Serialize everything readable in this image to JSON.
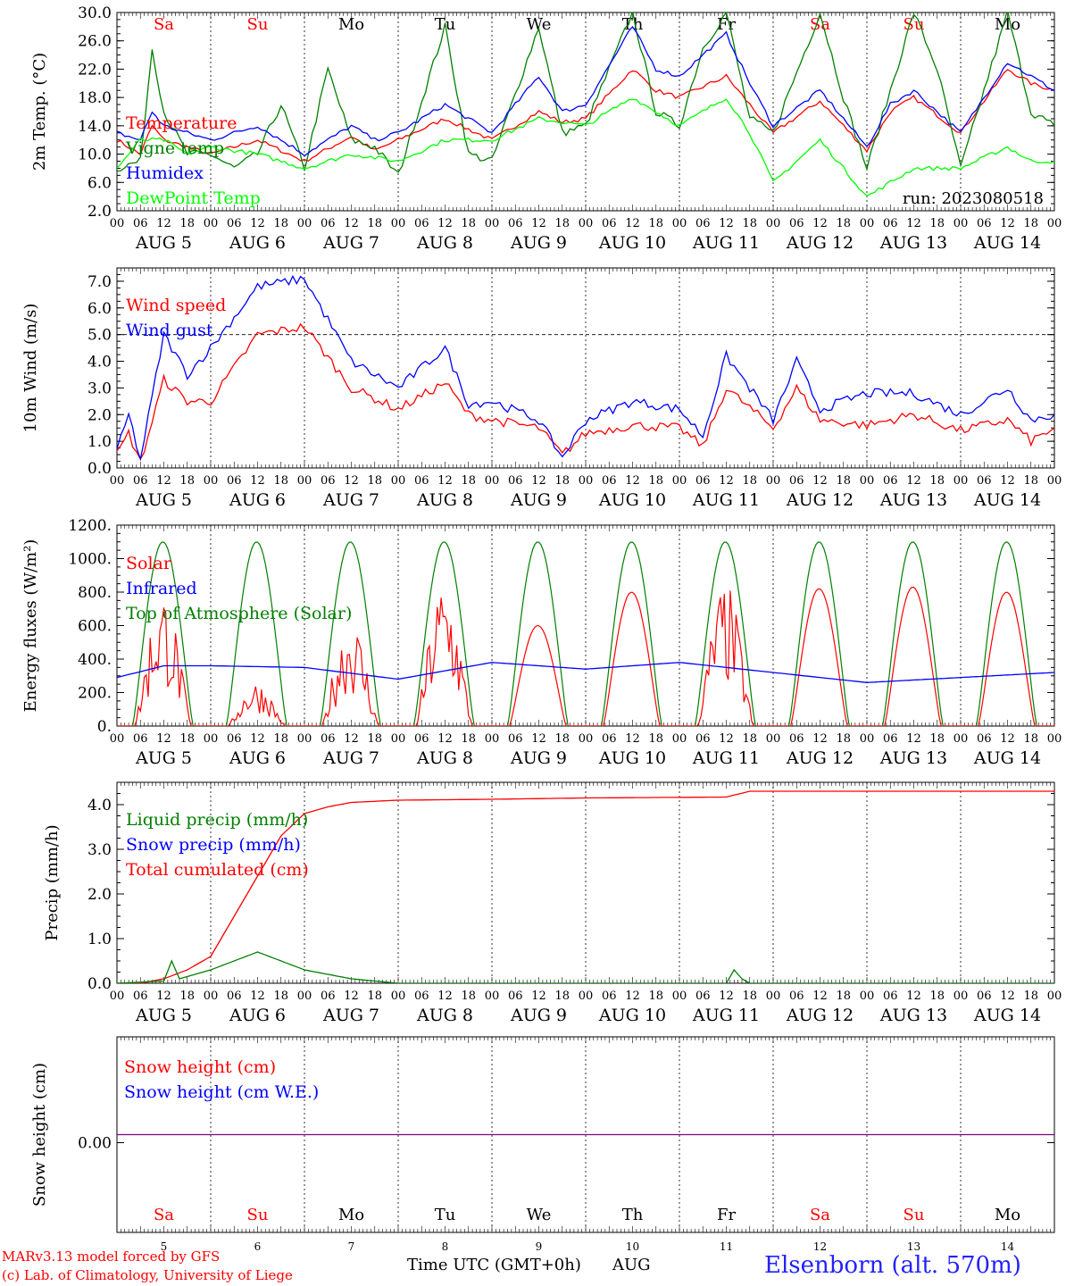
{
  "footer": {
    "credit_line1": "MARv3.13 model forced by GFS",
    "credit_line2": "(c) Lab. of Climatology, University of Liege",
    "time_axis_label": "Time UTC (GMT+0h)",
    "month_label": "AUG",
    "station": "Elsenborn (alt. 570m)"
  },
  "colors": {
    "red": "#ff0000",
    "blue": "#0000ff",
    "dark_green": "#007f00",
    "light_green": "#00ff00",
    "purple": "#7f007f",
    "black": "#000000"
  },
  "chart_data": [
    {
      "type": "line",
      "id": "temperature",
      "ylabel": "2m Temp. (°C)",
      "ylim": [
        2,
        30
      ],
      "yticks": [
        "2.0",
        "6.0",
        "10.0",
        "14.0",
        "18.0",
        "22.0",
        "26.0",
        "30.0"
      ],
      "ytick_values": [
        2,
        6,
        10,
        14,
        18,
        22,
        26,
        30
      ],
      "annotation": "run: 2023080518",
      "weekday_labels_top": true,
      "legend": [
        "Temperature",
        "Vigne temp",
        "Humidex",
        "DewPoint Temp"
      ],
      "series": [
        {
          "name": "Temperature",
          "color": "red",
          "x": [
            0,
            6,
            9,
            12,
            18,
            24,
            36,
            48,
            60,
            66,
            72,
            84,
            96,
            108,
            114,
            120,
            132,
            138,
            144,
            156,
            162,
            168,
            180,
            192,
            198,
            204,
            216,
            228,
            234,
            240
          ],
          "y": [
            12,
            10,
            14,
            12,
            11,
            10,
            12,
            9,
            12.5,
            10.5,
            12,
            15,
            12,
            16,
            14.5,
            15,
            22,
            19,
            18,
            21,
            17,
            13,
            17.5,
            10.5,
            16,
            18,
            13,
            22,
            20,
            19
          ]
        },
        {
          "name": "Vigne temp",
          "color": "dark_green",
          "x": [
            0,
            6,
            9,
            12,
            18,
            24,
            30,
            36,
            42,
            48,
            54,
            60,
            66,
            72,
            84,
            90,
            96,
            108,
            114,
            120,
            132,
            138,
            144,
            150,
            156,
            162,
            168,
            180,
            186,
            192,
            204,
            210,
            216,
            228,
            234,
            240
          ],
          "y": [
            8,
            9,
            25,
            16,
            10,
            10,
            8,
            10,
            17,
            8,
            22,
            12,
            11,
            7,
            28,
            10,
            9,
            28,
            13,
            14,
            30,
            16,
            14,
            25,
            30,
            15,
            13,
            30,
            18,
            8,
            30,
            22,
            8,
            30,
            16,
            14
          ]
        },
        {
          "name": "Humidex",
          "color": "blue",
          "x": [
            0,
            6,
            9,
            12,
            18,
            24,
            36,
            48,
            60,
            66,
            72,
            84,
            96,
            108,
            114,
            120,
            132,
            138,
            144,
            156,
            162,
            168,
            180,
            192,
            198,
            204,
            216,
            228,
            234,
            240
          ],
          "y": [
            13,
            12,
            16,
            14,
            13,
            12,
            14,
            10,
            14,
            12,
            13,
            17,
            13,
            21,
            16,
            17,
            28,
            22,
            21,
            27,
            20,
            14,
            19,
            11,
            17,
            19,
            13,
            23,
            21,
            19
          ]
        },
        {
          "name": "DewPoint Temp",
          "color": "light_green",
          "x": [
            0,
            6,
            12,
            18,
            24,
            36,
            48,
            60,
            72,
            84,
            96,
            108,
            120,
            132,
            144,
            156,
            162,
            168,
            180,
            186,
            192,
            204,
            216,
            228,
            234,
            240
          ],
          "y": [
            8,
            12,
            12,
            10,
            11,
            10,
            8,
            10,
            9,
            12,
            12,
            15,
            14,
            18,
            14,
            18,
            13,
            6,
            12,
            8,
            4,
            8,
            8,
            11,
            9,
            9
          ]
        }
      ]
    },
    {
      "type": "line",
      "id": "wind",
      "ylabel": "10m Wind (m/s)",
      "ylim": [
        0,
        7.5
      ],
      "yticks": [
        "0.0",
        "1.0",
        "2.0",
        "3.0",
        "4.0",
        "5.0",
        "6.0",
        "7.0"
      ],
      "ytick_values": [
        0,
        1,
        2,
        3,
        4,
        5,
        6,
        7
      ],
      "reference_line": 5.0,
      "legend": [
        "Wind speed",
        "Wind gust"
      ],
      "series": [
        {
          "name": "Wind speed",
          "color": "red",
          "x": [
            0,
            3,
            6,
            12,
            18,
            24,
            36,
            48,
            60,
            72,
            84,
            90,
            96,
            108,
            114,
            120,
            132,
            144,
            150,
            156,
            168,
            174,
            180,
            192,
            204,
            216,
            228,
            234,
            240
          ],
          "y": [
            0.5,
            1.3,
            0.2,
            3.3,
            2.5,
            2.5,
            5,
            5.3,
            3,
            2.2,
            3.2,
            2,
            1.8,
            1.5,
            0.5,
            1.3,
            1.6,
            1.5,
            0.8,
            3,
            1.5,
            3,
            1.8,
            1.6,
            2,
            1.4,
            1.8,
            1,
            1.5
          ]
        },
        {
          "name": "Wind gust",
          "color": "blue",
          "x": [
            0,
            3,
            6,
            12,
            18,
            24,
            36,
            48,
            60,
            72,
            84,
            90,
            96,
            108,
            114,
            120,
            132,
            144,
            150,
            156,
            168,
            174,
            180,
            192,
            204,
            216,
            228,
            234,
            240
          ],
          "y": [
            0.6,
            2,
            0.3,
            5,
            3.5,
            4.5,
            6.8,
            7.1,
            4,
            3,
            4.5,
            2.4,
            2.5,
            1.8,
            0.4,
            1.8,
            2.5,
            2.2,
            1.2,
            4.2,
            1.8,
            4,
            2.2,
            2.8,
            2.8,
            2,
            3,
            1.8,
            2
          ]
        }
      ]
    },
    {
      "type": "line",
      "id": "fluxes",
      "ylabel": "Energy fluxes (W/m²)",
      "ylim": [
        0,
        1200
      ],
      "yticks": [
        "0.",
        "200.",
        "400.",
        "600.",
        "800.",
        "1000.",
        "1200."
      ],
      "ytick_values": [
        0,
        200,
        400,
        600,
        800,
        1000,
        1200
      ],
      "legend": [
        "Solar",
        "Infrared",
        "Top of Atmosphere (Solar)"
      ],
      "solar_daily_peaks": [
        750,
        250,
        600,
        800,
        600,
        800,
        780,
        820,
        830,
        800
      ],
      "toa_peak": 1100,
      "series": [
        {
          "name": "Infrared",
          "color": "blue",
          "x": [
            0,
            12,
            24,
            48,
            72,
            96,
            120,
            144,
            168,
            192,
            216,
            240
          ],
          "y": [
            290,
            360,
            360,
            350,
            280,
            380,
            340,
            380,
            320,
            260,
            290,
            320
          ]
        }
      ]
    },
    {
      "type": "line",
      "id": "precip",
      "ylabel": "Precip (mm/h)",
      "ylim": [
        0,
        4.5
      ],
      "yticks": [
        "0.0",
        "1.0",
        "2.0",
        "3.0",
        "4.0"
      ],
      "ytick_values": [
        0,
        1,
        2,
        3,
        4
      ],
      "legend": [
        "Liquid precip (mm/h)",
        "Snow precip (mm/h)",
        "Total cumulated (cm)"
      ],
      "series": [
        {
          "name": "Total cumulated (cm)",
          "color": "red",
          "x": [
            0,
            6,
            12,
            18,
            24,
            30,
            36,
            42,
            48,
            54,
            60,
            72,
            96,
            120,
            156,
            162,
            168,
            240
          ],
          "y": [
            0,
            0,
            0.1,
            0.3,
            0.6,
            1.5,
            2.4,
            3.3,
            3.8,
            3.95,
            4.05,
            4.1,
            4.12,
            4.15,
            4.17,
            4.3,
            4.3,
            4.3
          ]
        },
        {
          "name": "Liquid precip (mm/h)",
          "color": "dark_green",
          "x": [
            0,
            12,
            14,
            16,
            20,
            24,
            30,
            36,
            42,
            48,
            54,
            60,
            66,
            72,
            90,
            144,
            156,
            158,
            160,
            162,
            168,
            240
          ],
          "y": [
            0,
            0.05,
            0.5,
            0.1,
            0.2,
            0.3,
            0.5,
            0.7,
            0.5,
            0.3,
            0.2,
            0.1,
            0.05,
            0,
            0,
            0,
            0,
            0.3,
            0.1,
            0,
            0,
            0
          ]
        }
      ]
    },
    {
      "type": "line",
      "id": "snow",
      "ylabel": "Snow height (cm)",
      "yticks": [
        "0.00"
      ],
      "ytick_values": [
        0
      ],
      "legend": [
        "Snow height (cm)",
        "Snow height (cm W.E.)"
      ],
      "series": [
        {
          "name": "Snow height (cm)",
          "color": "purple",
          "x": [
            0,
            240
          ],
          "y": [
            0,
            0
          ]
        }
      ]
    }
  ],
  "x_axis": {
    "hour_labels": [
      "00",
      "06",
      "12",
      "18"
    ],
    "end_label": "00",
    "days": [
      {
        "date": "AUG 5",
        "num": "5",
        "weekday": "Sa",
        "weekend": true
      },
      {
        "date": "AUG 6",
        "num": "6",
        "weekday": "Su",
        "weekend": true
      },
      {
        "date": "AUG 7",
        "num": "7",
        "weekday": "Mo",
        "weekend": false
      },
      {
        "date": "AUG 8",
        "num": "8",
        "weekday": "Tu",
        "weekend": false
      },
      {
        "date": "AUG 9",
        "num": "9",
        "weekday": "We",
        "weekend": false
      },
      {
        "date": "AUG 10",
        "num": "10",
        "weekday": "Th",
        "weekend": false
      },
      {
        "date": "AUG 11",
        "num": "11",
        "weekday": "Fr",
        "weekend": false
      },
      {
        "date": "AUG 12",
        "num": "12",
        "weekday": "Sa",
        "weekend": true
      },
      {
        "date": "AUG 13",
        "num": "13",
        "weekday": "Su",
        "weekend": true
      },
      {
        "date": "AUG 14",
        "num": "14",
        "weekday": "Mo",
        "weekend": false
      }
    ]
  }
}
